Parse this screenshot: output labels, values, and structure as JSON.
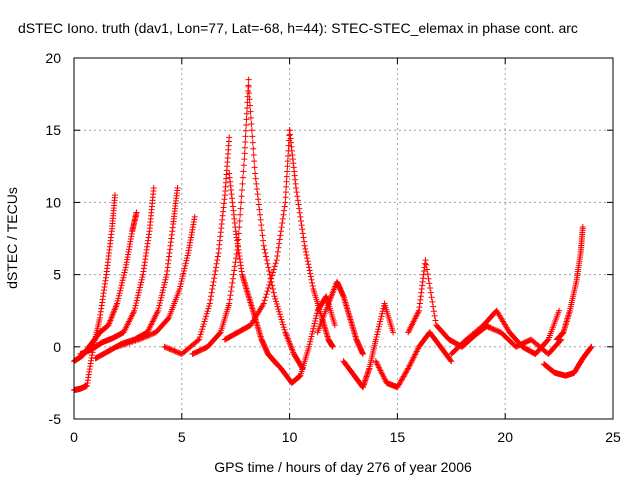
{
  "chart_data": {
    "type": "scatter",
    "title": "dSTEC Iono. truth (dav1, Lon=77, Lat=-68, h=44): STEC-STEC_elemax in phase cont. arc",
    "xlabel": "GPS time / hours of day 276 of year 2006",
    "ylabel": "dSTEC  / TECUs",
    "xlim": [
      0,
      25
    ],
    "ylim": [
      -5,
      20
    ],
    "xticks": [
      "0",
      "5",
      "10",
      "15",
      "20",
      "25"
    ],
    "yticks": [
      "-5",
      "0",
      "5",
      "10",
      "15",
      "20"
    ],
    "grid": true,
    "marker": "plus",
    "color": "#ff0000",
    "series": [
      {
        "name": "",
        "x": [
          0.0,
          0.3,
          0.6,
          0.9,
          1.2,
          1.5,
          1.75,
          1.9
        ],
        "y": [
          -3.0,
          -2.9,
          -2.7,
          0.0,
          2.0,
          5.0,
          8.0,
          10.5
        ]
      },
      {
        "name": "",
        "x": [
          0.0,
          0.4,
          0.8,
          1.2,
          1.6,
          2.0,
          2.4,
          2.7,
          2.9
        ],
        "y": [
          -1.0,
          -0.6,
          0.2,
          1.0,
          1.5,
          3.0,
          5.5,
          8.0,
          9.3
        ]
      },
      {
        "name": "",
        "x": [
          0.3,
          0.8,
          1.3,
          1.8,
          2.3,
          2.8,
          3.2,
          3.5,
          3.7
        ],
        "y": [
          -0.5,
          -0.2,
          0.3,
          0.6,
          1.0,
          2.5,
          5.0,
          8.0,
          11.0
        ]
      },
      {
        "name": "",
        "x": [
          1.0,
          1.6,
          2.2,
          2.8,
          3.4,
          3.9,
          4.3,
          4.6,
          4.8
        ],
        "y": [
          -0.8,
          -0.3,
          0.2,
          0.5,
          1.0,
          2.5,
          5.0,
          8.5,
          11.0
        ]
      },
      {
        "name": "",
        "x": [
          2.0,
          3.0,
          3.8,
          4.4,
          4.9,
          5.3,
          5.6
        ],
        "y": [
          0.0,
          0.5,
          1.0,
          2.0,
          4.0,
          6.5,
          9.0
        ]
      },
      {
        "name": "",
        "x": [
          4.2,
          5.0,
          5.8,
          6.3,
          6.7,
          7.0,
          7.2
        ],
        "y": [
          0.0,
          -0.5,
          0.5,
          3.0,
          6.5,
          10.5,
          14.5
        ]
      },
      {
        "name": "",
        "x": [
          7.2,
          7.5,
          7.8,
          8.1,
          8.4,
          8.7,
          9.0,
          9.4
        ],
        "y": [
          12.0,
          8.0,
          5.0,
          3.5,
          2.0,
          0.5,
          -0.5,
          -1.2
        ]
      },
      {
        "name": "",
        "x": [
          5.5,
          6.2,
          6.8,
          7.2,
          7.6,
          7.9,
          8.1
        ],
        "y": [
          -0.5,
          0.0,
          1.0,
          3.0,
          7.0,
          13.0,
          18.5
        ]
      },
      {
        "name": "",
        "x": [
          8.1,
          8.4,
          8.8,
          9.3,
          9.8,
          10.2,
          10.6
        ],
        "y": [
          18.0,
          12.0,
          7.0,
          3.5,
          1.0,
          -0.5,
          -1.5
        ]
      },
      {
        "name": "",
        "x": [
          7.0,
          7.6,
          8.2,
          8.8,
          9.4,
          9.8,
          10.0
        ],
        "y": [
          0.5,
          1.0,
          1.5,
          3.0,
          6.0,
          10.0,
          15.0
        ]
      },
      {
        "name": "",
        "x": [
          10.0,
          10.3,
          10.7,
          11.1,
          11.5,
          11.8,
          12.0
        ],
        "y": [
          15.0,
          11.0,
          7.0,
          4.0,
          2.0,
          0.5,
          0.0
        ]
      },
      {
        "name": "",
        "x": [
          9.0,
          9.6,
          10.1,
          10.5,
          10.9,
          11.3,
          11.7,
          12.1
        ],
        "y": [
          -0.5,
          -1.5,
          -2.5,
          -2.0,
          0.0,
          2.5,
          3.5,
          1.5
        ]
      },
      {
        "name": "",
        "x": [
          11.3,
          11.8,
          12.2,
          12.5,
          12.8,
          13.1,
          13.4
        ],
        "y": [
          1.0,
          3.0,
          4.5,
          3.5,
          2.0,
          0.5,
          -0.5
        ]
      },
      {
        "name": "",
        "x": [
          12.5,
          13.0,
          13.4,
          13.7,
          14.0,
          14.4,
          14.8
        ],
        "y": [
          -1.0,
          -2.0,
          -2.8,
          -1.5,
          0.5,
          3.0,
          1.0
        ]
      },
      {
        "name": "",
        "x": [
          14.0,
          14.5,
          15.0,
          15.5,
          16.0,
          16.5,
          17.0,
          17.5
        ],
        "y": [
          -1.0,
          -2.5,
          -2.8,
          -1.5,
          0.0,
          1.0,
          0.0,
          -1.0
        ]
      },
      {
        "name": "",
        "x": [
          15.5,
          16.0,
          16.3,
          16.8,
          17.4,
          18.0,
          18.6,
          19.2
        ],
        "y": [
          1.0,
          2.5,
          6.0,
          1.5,
          0.5,
          0.0,
          0.8,
          1.5
        ]
      },
      {
        "name": "",
        "x": [
          17.5,
          18.2,
          19.0,
          19.8,
          20.5,
          21.2,
          22.0,
          22.6
        ],
        "y": [
          -0.5,
          0.5,
          1.5,
          1.0,
          0.0,
          0.5,
          -0.5,
          0.5
        ]
      },
      {
        "name": "",
        "x": [
          19.0,
          19.6,
          20.2,
          20.8,
          21.4,
          22.0,
          22.5
        ],
        "y": [
          1.5,
          2.5,
          1.0,
          0.0,
          -0.5,
          0.5,
          2.5
        ]
      },
      {
        "name": "",
        "x": [
          21.8,
          22.3,
          22.8,
          23.2,
          23.6,
          24.0
        ],
        "y": [
          -1.2,
          -1.8,
          -2.0,
          -1.8,
          -0.8,
          0.0
        ]
      },
      {
        "name": "",
        "x": [
          22.4,
          22.7,
          23.0,
          23.3,
          23.5,
          23.6
        ],
        "y": [
          0.5,
          1.0,
          2.5,
          4.5,
          6.5,
          8.3
        ]
      }
    ]
  }
}
